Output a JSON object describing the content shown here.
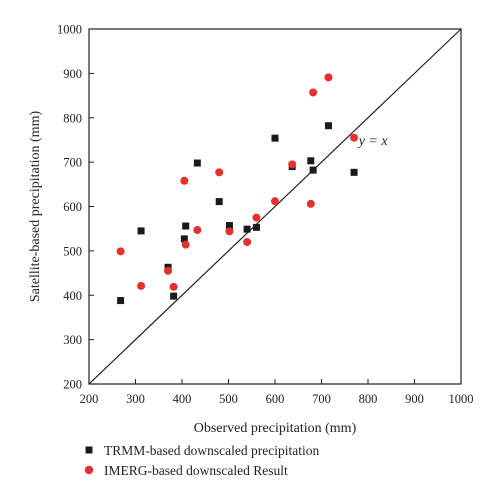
{
  "chart_data": {
    "type": "scatter",
    "xlabel": "Observed precipitation (mm)",
    "ylabel": "Satellite-based precipitation (mm)",
    "xlim": [
      200,
      1000
    ],
    "ylim": [
      200,
      1000
    ],
    "xticks": [
      "200",
      "300",
      "400",
      "500",
      "600",
      "700",
      "800",
      "900",
      "1000"
    ],
    "yticks": [
      "200",
      "300",
      "400",
      "500",
      "600",
      "700",
      "800",
      "900",
      "1000"
    ],
    "grid": false,
    "legend_position": "bottom",
    "reference_line": {
      "label": "y = x",
      "label_x": 780,
      "label_y": 750
    },
    "series": [
      {
        "name": "TRMM-based downscaled precipitation",
        "marker": "square",
        "color": "#1a1a1a",
        "points": [
          [
            268,
            388
          ],
          [
            312,
            545
          ],
          [
            370,
            463
          ],
          [
            382,
            398
          ],
          [
            405,
            527
          ],
          [
            408,
            556
          ],
          [
            433,
            698
          ],
          [
            480,
            611
          ],
          [
            502,
            557
          ],
          [
            540,
            549
          ],
          [
            560,
            553
          ],
          [
            600,
            754
          ],
          [
            637,
            690
          ],
          [
            677,
            703
          ],
          [
            682,
            682
          ],
          [
            715,
            782
          ],
          [
            770,
            677
          ]
        ]
      },
      {
        "name": "IMERG-based downscaled Result",
        "marker": "circle",
        "color": "#e8302b",
        "points": [
          [
            268,
            499
          ],
          [
            312,
            421
          ],
          [
            370,
            455
          ],
          [
            382,
            419
          ],
          [
            405,
            658
          ],
          [
            408,
            514
          ],
          [
            433,
            547
          ],
          [
            480,
            677
          ],
          [
            502,
            544
          ],
          [
            540,
            520
          ],
          [
            560,
            575
          ],
          [
            600,
            612
          ],
          [
            637,
            695
          ],
          [
            677,
            606
          ],
          [
            682,
            857
          ],
          [
            715,
            891
          ],
          [
            770,
            755
          ]
        ]
      }
    ]
  }
}
